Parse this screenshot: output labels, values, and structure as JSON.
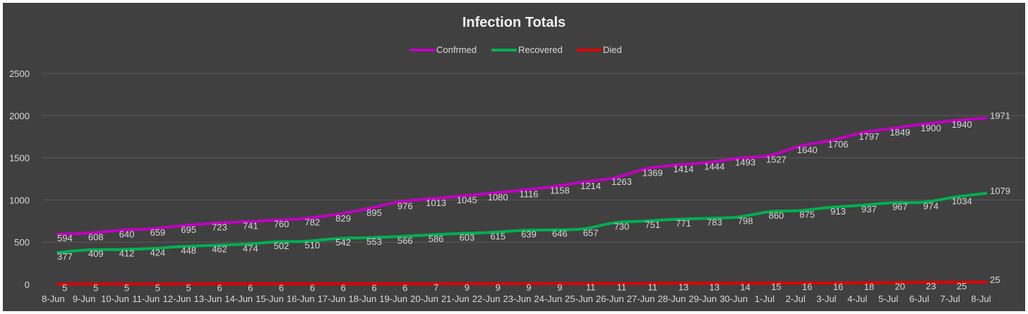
{
  "chart_data": {
    "type": "line",
    "title": "Infection Totals",
    "xlabel": "",
    "ylabel": "",
    "ylim": [
      0,
      2500
    ],
    "yticks": [
      0,
      500,
      1000,
      1500,
      2000,
      2500
    ],
    "grid": true,
    "legend_position": "top-center",
    "categories": [
      "8-Jun",
      "9-Jun",
      "10-Jun",
      "11-Jun",
      "12-Jun",
      "13-Jun",
      "14-Jun",
      "15-Jun",
      "16-Jun",
      "17-Jun",
      "18-Jun",
      "19-Jun",
      "20-Jun",
      "21-Jun",
      "22-Jun",
      "23-Jun",
      "24-Jun",
      "25-Jun",
      "26-Jun",
      "27-Jun",
      "28-Jun",
      "29-Jun",
      "30-Jun",
      "1-Jul",
      "2-Jul",
      "3-Jul",
      "4-Jul",
      "5-Jul",
      "6-Jul",
      "7-Jul",
      "8-Jul"
    ],
    "series": [
      {
        "name": "Confrmed",
        "color": "#c000c0",
        "values": [
          594,
          608,
          640,
          659,
          695,
          723,
          741,
          760,
          782,
          829,
          895,
          976,
          1013,
          1045,
          1080,
          1116,
          1158,
          1214,
          1263,
          1369,
          1414,
          1444,
          1493,
          1527,
          1640,
          1706,
          1797,
          1849,
          1900,
          1940,
          1971
        ]
      },
      {
        "name": "Recovered",
        "color": "#00b050",
        "values": [
          377,
          409,
          412,
          424,
          448,
          462,
          474,
          502,
          510,
          542,
          553,
          566,
          586,
          603,
          615,
          639,
          646,
          657,
          730,
          751,
          771,
          783,
          798,
          860,
          875,
          913,
          937,
          967,
          974,
          1034,
          1079
        ]
      },
      {
        "name": "Died",
        "color": "#e00000",
        "values": [
          5,
          5,
          5,
          5,
          5,
          6,
          6,
          6,
          6,
          6,
          6,
          6,
          7,
          9,
          9,
          9,
          9,
          11,
          11,
          11,
          13,
          13,
          14,
          15,
          16,
          16,
          18,
          20,
          23,
          25,
          25
        ]
      }
    ],
    "background": "#404040"
  }
}
